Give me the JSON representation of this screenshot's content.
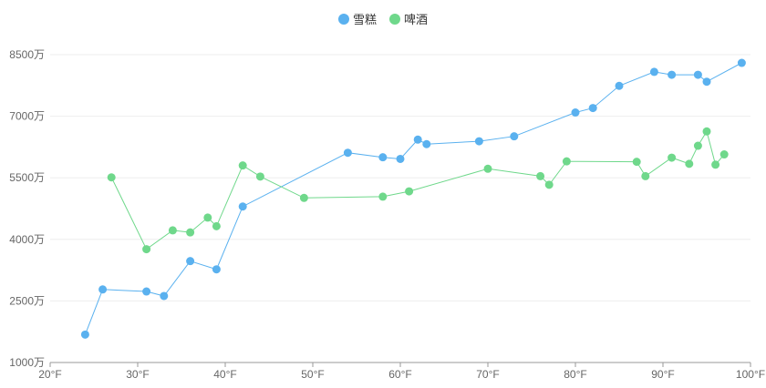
{
  "chart_data": {
    "type": "line",
    "title": "",
    "xlabel": "",
    "ylabel": "",
    "x_unit_suffix": "°F",
    "y_unit_suffix": "万",
    "xlim": [
      20,
      100
    ],
    "ylim": [
      1000,
      8500
    ],
    "x_ticks": [
      20,
      30,
      40,
      50,
      60,
      70,
      80,
      90,
      100
    ],
    "y_ticks": [
      1000,
      2500,
      4000,
      5500,
      7000,
      8500
    ],
    "grid": "horizontal",
    "legend_position": "top-center",
    "series": [
      {
        "name": "雪糕",
        "color": "#5ab1ef",
        "points": [
          [
            24,
            1680
          ],
          [
            26,
            2780
          ],
          [
            31,
            2730
          ],
          [
            33,
            2620
          ],
          [
            36,
            3470
          ],
          [
            39,
            3270
          ],
          [
            42,
            4800
          ],
          [
            54,
            6110
          ],
          [
            58,
            6000
          ],
          [
            60,
            5960
          ],
          [
            62,
            6430
          ],
          [
            63,
            6320
          ],
          [
            69,
            6390
          ],
          [
            73,
            6510
          ],
          [
            80,
            7090
          ],
          [
            82,
            7200
          ],
          [
            85,
            7740
          ],
          [
            89,
            8080
          ],
          [
            91,
            8010
          ],
          [
            94,
            8010
          ],
          [
            95,
            7840
          ],
          [
            99,
            8300
          ]
        ]
      },
      {
        "name": "啤酒",
        "color": "#6fd88b",
        "points": [
          [
            27,
            5510
          ],
          [
            31,
            3760
          ],
          [
            34,
            4220
          ],
          [
            36,
            4170
          ],
          [
            38,
            4530
          ],
          [
            39,
            4320
          ],
          [
            42,
            5800
          ],
          [
            44,
            5530
          ],
          [
            49,
            5010
          ],
          [
            58,
            5040
          ],
          [
            61,
            5170
          ],
          [
            70,
            5720
          ],
          [
            76,
            5540
          ],
          [
            77,
            5330
          ],
          [
            79,
            5900
          ],
          [
            87,
            5890
          ],
          [
            88,
            5540
          ],
          [
            91,
            5990
          ],
          [
            93,
            5840
          ],
          [
            94,
            6280
          ],
          [
            95,
            6630
          ],
          [
            96,
            5820
          ],
          [
            97,
            6070
          ]
        ]
      }
    ]
  }
}
